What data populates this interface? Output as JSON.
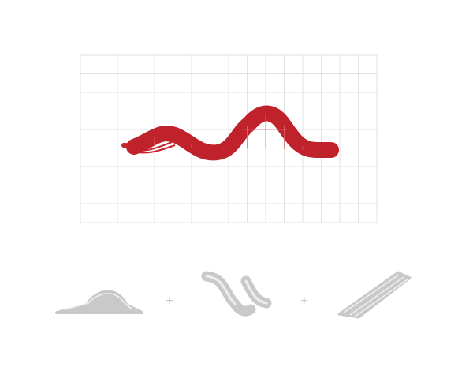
{
  "operators": [
    "+",
    "+"
  ]
}
